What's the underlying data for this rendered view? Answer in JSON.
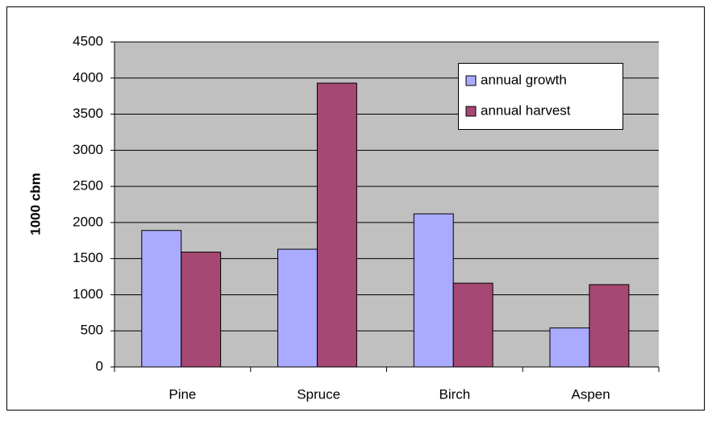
{
  "chart_data": {
    "type": "bar",
    "y_label": "1000 cbm",
    "categories": [
      "Pine",
      "Spruce",
      "Birch",
      "Aspen"
    ],
    "series": [
      {
        "name": "annual growth",
        "color": "#aaaaff",
        "values": [
          1890,
          1630,
          2120,
          540
        ]
      },
      {
        "name": "annual harvest",
        "color": "#a64873",
        "values": [
          1590,
          3930,
          1160,
          1140
        ]
      }
    ],
    "ylim": [
      0,
      4500
    ],
    "yticks": [
      0,
      500,
      1000,
      1500,
      2000,
      2500,
      3000,
      3500,
      4000,
      4500
    ],
    "grid": true,
    "legend": "upper right",
    "plot_background": "#c0c0c0"
  }
}
